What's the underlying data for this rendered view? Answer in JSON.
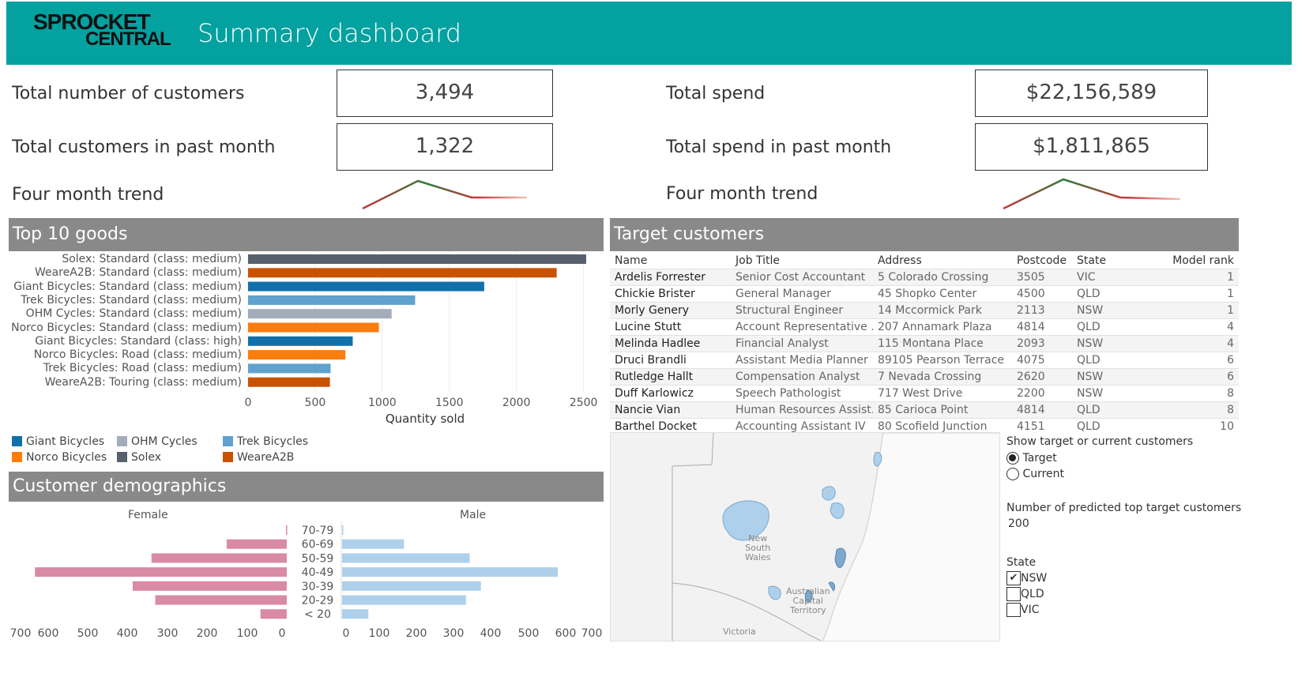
{
  "header": {
    "logo_line1": "SPROCKET",
    "logo_line2": "CENTRAL",
    "title": "Summary dashboard",
    "bg_color": "#03a19f"
  },
  "kpis": {
    "total_customers_label": "Total number of customers",
    "total_customers_value": "3,494",
    "customers_past_month_label": "Total customers in past month",
    "customers_past_month_value": "1,322",
    "total_spend_label": "Total spend",
    "total_spend_value": "$22,156,589",
    "spend_past_month_label": "Total spend in past month",
    "spend_past_month_value": "$1,811,865",
    "trend_label_left": "Four month trend",
    "trend_label_right": "Four month trend"
  },
  "top_goods": {
    "title": "Top 10 goods",
    "chart_data": {
      "type": "bar",
      "orientation": "horizontal",
      "title": "Top 10 goods",
      "xlabel": "Quantity sold",
      "xlim": [
        0,
        2600
      ],
      "ticks": [
        0,
        500,
        1000,
        1500,
        2000,
        2500
      ],
      "categories": [
        "Solex: Standard (class: medium)",
        "WeareA2B: Standard (class: medium)",
        "Giant Bicycles: Standard (class: medium)",
        "Trek Bicycles: Standard (class: medium)",
        "OHM Cycles: Standard (class: medium)",
        "Norco Bicycles: Standard (class: medium)",
        "Giant Bicycles: Standard (class: high)",
        "Norco Bicycles: Road (class: medium)",
        "Trek Bicycles: Road (class: medium)",
        "WeareA2B: Touring (class: medium)"
      ],
      "values": [
        2520,
        2300,
        1760,
        1245,
        1070,
        975,
        780,
        725,
        615,
        610
      ],
      "colors": [
        "#57606c",
        "#c85200",
        "#1170aa",
        "#5fa2ce",
        "#a3acb9",
        "#fc7d0b",
        "#1170aa",
        "#fc7d0b",
        "#5fa2ce",
        "#c85200"
      ]
    },
    "legend": [
      {
        "label": "Giant Bicycles",
        "color": "#1170aa"
      },
      {
        "label": "OHM Cycles",
        "color": "#a3acb9"
      },
      {
        "label": "Trek Bicycles",
        "color": "#5fa2ce"
      },
      {
        "label": "Norco Bicycles",
        "color": "#fc7d0b"
      },
      {
        "label": "Solex",
        "color": "#57606c"
      },
      {
        "label": "WeareA2B",
        "color": "#c85200"
      }
    ]
  },
  "demographics": {
    "title": "Customer demographics",
    "female_label": "Female",
    "male_label": "Male",
    "chart_data": {
      "type": "bar",
      "orientation": "horizontal",
      "categories": [
        "70-79",
        "60-69",
        "50-59",
        "40-49",
        "30-39",
        "20-29",
        "< 20"
      ],
      "series": [
        {
          "name": "Female",
          "values": [
            2,
            160,
            360,
            670,
            410,
            350,
            70
          ],
          "color": "#d98aa4"
        },
        {
          "name": "Male",
          "values": [
            2,
            165,
            340,
            575,
            370,
            330,
            70
          ],
          "color": "#aed0eb"
        }
      ],
      "xlim": [
        0,
        700
      ],
      "female_ticks": [
        "700",
        "600",
        "500",
        "400",
        "300",
        "200",
        "100",
        "0"
      ],
      "male_ticks": [
        "0",
        "100",
        "200",
        "300",
        "400",
        "500",
        "600",
        "700"
      ]
    }
  },
  "target_customers": {
    "title": "Target customers",
    "columns": [
      "Name",
      "Job Title",
      "Address",
      "Postcode",
      "State",
      "Model rank"
    ],
    "rows": [
      [
        "Ardelis Forrester",
        "Senior Cost Accountant",
        "5 Colorado Crossing",
        "3505",
        "VIC",
        "1"
      ],
      [
        "Chickie Brister",
        "General Manager",
        "45 Shopko Center",
        "4500",
        "QLD",
        "1"
      ],
      [
        "Morly Genery",
        "Structural Engineer",
        "14 Mccormick Park",
        "2113",
        "NSW",
        "1"
      ],
      [
        "Lucine Stutt",
        "Account Representative ..",
        "207 Annamark Plaza",
        "4814",
        "QLD",
        "4"
      ],
      [
        "Melinda Hadlee",
        "Financial Analyst",
        "115 Montana Place",
        "2093",
        "NSW",
        "4"
      ],
      [
        "Druci Brandli",
        "Assistant Media Planner",
        "89105 Pearson Terrace",
        "4075",
        "QLD",
        "6"
      ],
      [
        "Rutledge Hallt",
        "Compensation Analyst",
        "7 Nevada Crossing",
        "2620",
        "NSW",
        "6"
      ],
      [
        "Duff Karlowicz",
        "Speech Pathologist",
        "717 West Drive",
        "2200",
        "NSW",
        "8"
      ],
      [
        "Nancie Vian",
        "Human Resources Assist..",
        "85 Carioca Point",
        "4814",
        "QLD",
        "8"
      ],
      [
        "Barthel Docket",
        "Accounting Assistant IV",
        "80 Scofield Junction",
        "4151",
        "QLD",
        "10"
      ]
    ]
  },
  "map": {
    "label_nsw_1": "New",
    "label_nsw_2": "South",
    "label_nsw_3": "Wales",
    "label_act_1": "Australian",
    "label_act_2": "Capital",
    "label_act_3": "Territory",
    "label_vic": "Victoria"
  },
  "controls": {
    "show_label": "Show target or current customers",
    "option_target": "Target",
    "option_current": "Current",
    "selected": "Target",
    "num_label": "Number of predicted top target customers",
    "num_value": "200",
    "state_label": "State",
    "states": [
      {
        "label": "NSW",
        "checked": true
      },
      {
        "label": "QLD",
        "checked": false
      },
      {
        "label": "VIC",
        "checked": false
      }
    ]
  }
}
